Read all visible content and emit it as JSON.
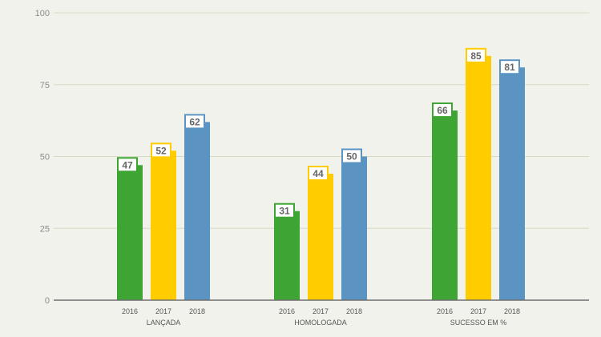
{
  "chart_data": {
    "type": "bar",
    "categories": [
      "LANÇADA",
      "HOMOLOGADA",
      "SUCESSO EM %"
    ],
    "series": [
      {
        "name": "2016",
        "color": "#3ea535",
        "values": [
          47,
          31,
          66
        ]
      },
      {
        "name": "2017",
        "color": "#ffcc00",
        "values": [
          52,
          44,
          85
        ]
      },
      {
        "name": "2018",
        "color": "#5b94c3",
        "values": [
          62,
          50,
          81
        ]
      }
    ],
    "yticks": [
      0,
      25,
      50,
      75,
      100
    ],
    "ylim": [
      0,
      100
    ],
    "grid": true,
    "show_data_labels": true,
    "label_text_color": "#666666",
    "title": "",
    "xlabel": "",
    "ylabel": ""
  }
}
